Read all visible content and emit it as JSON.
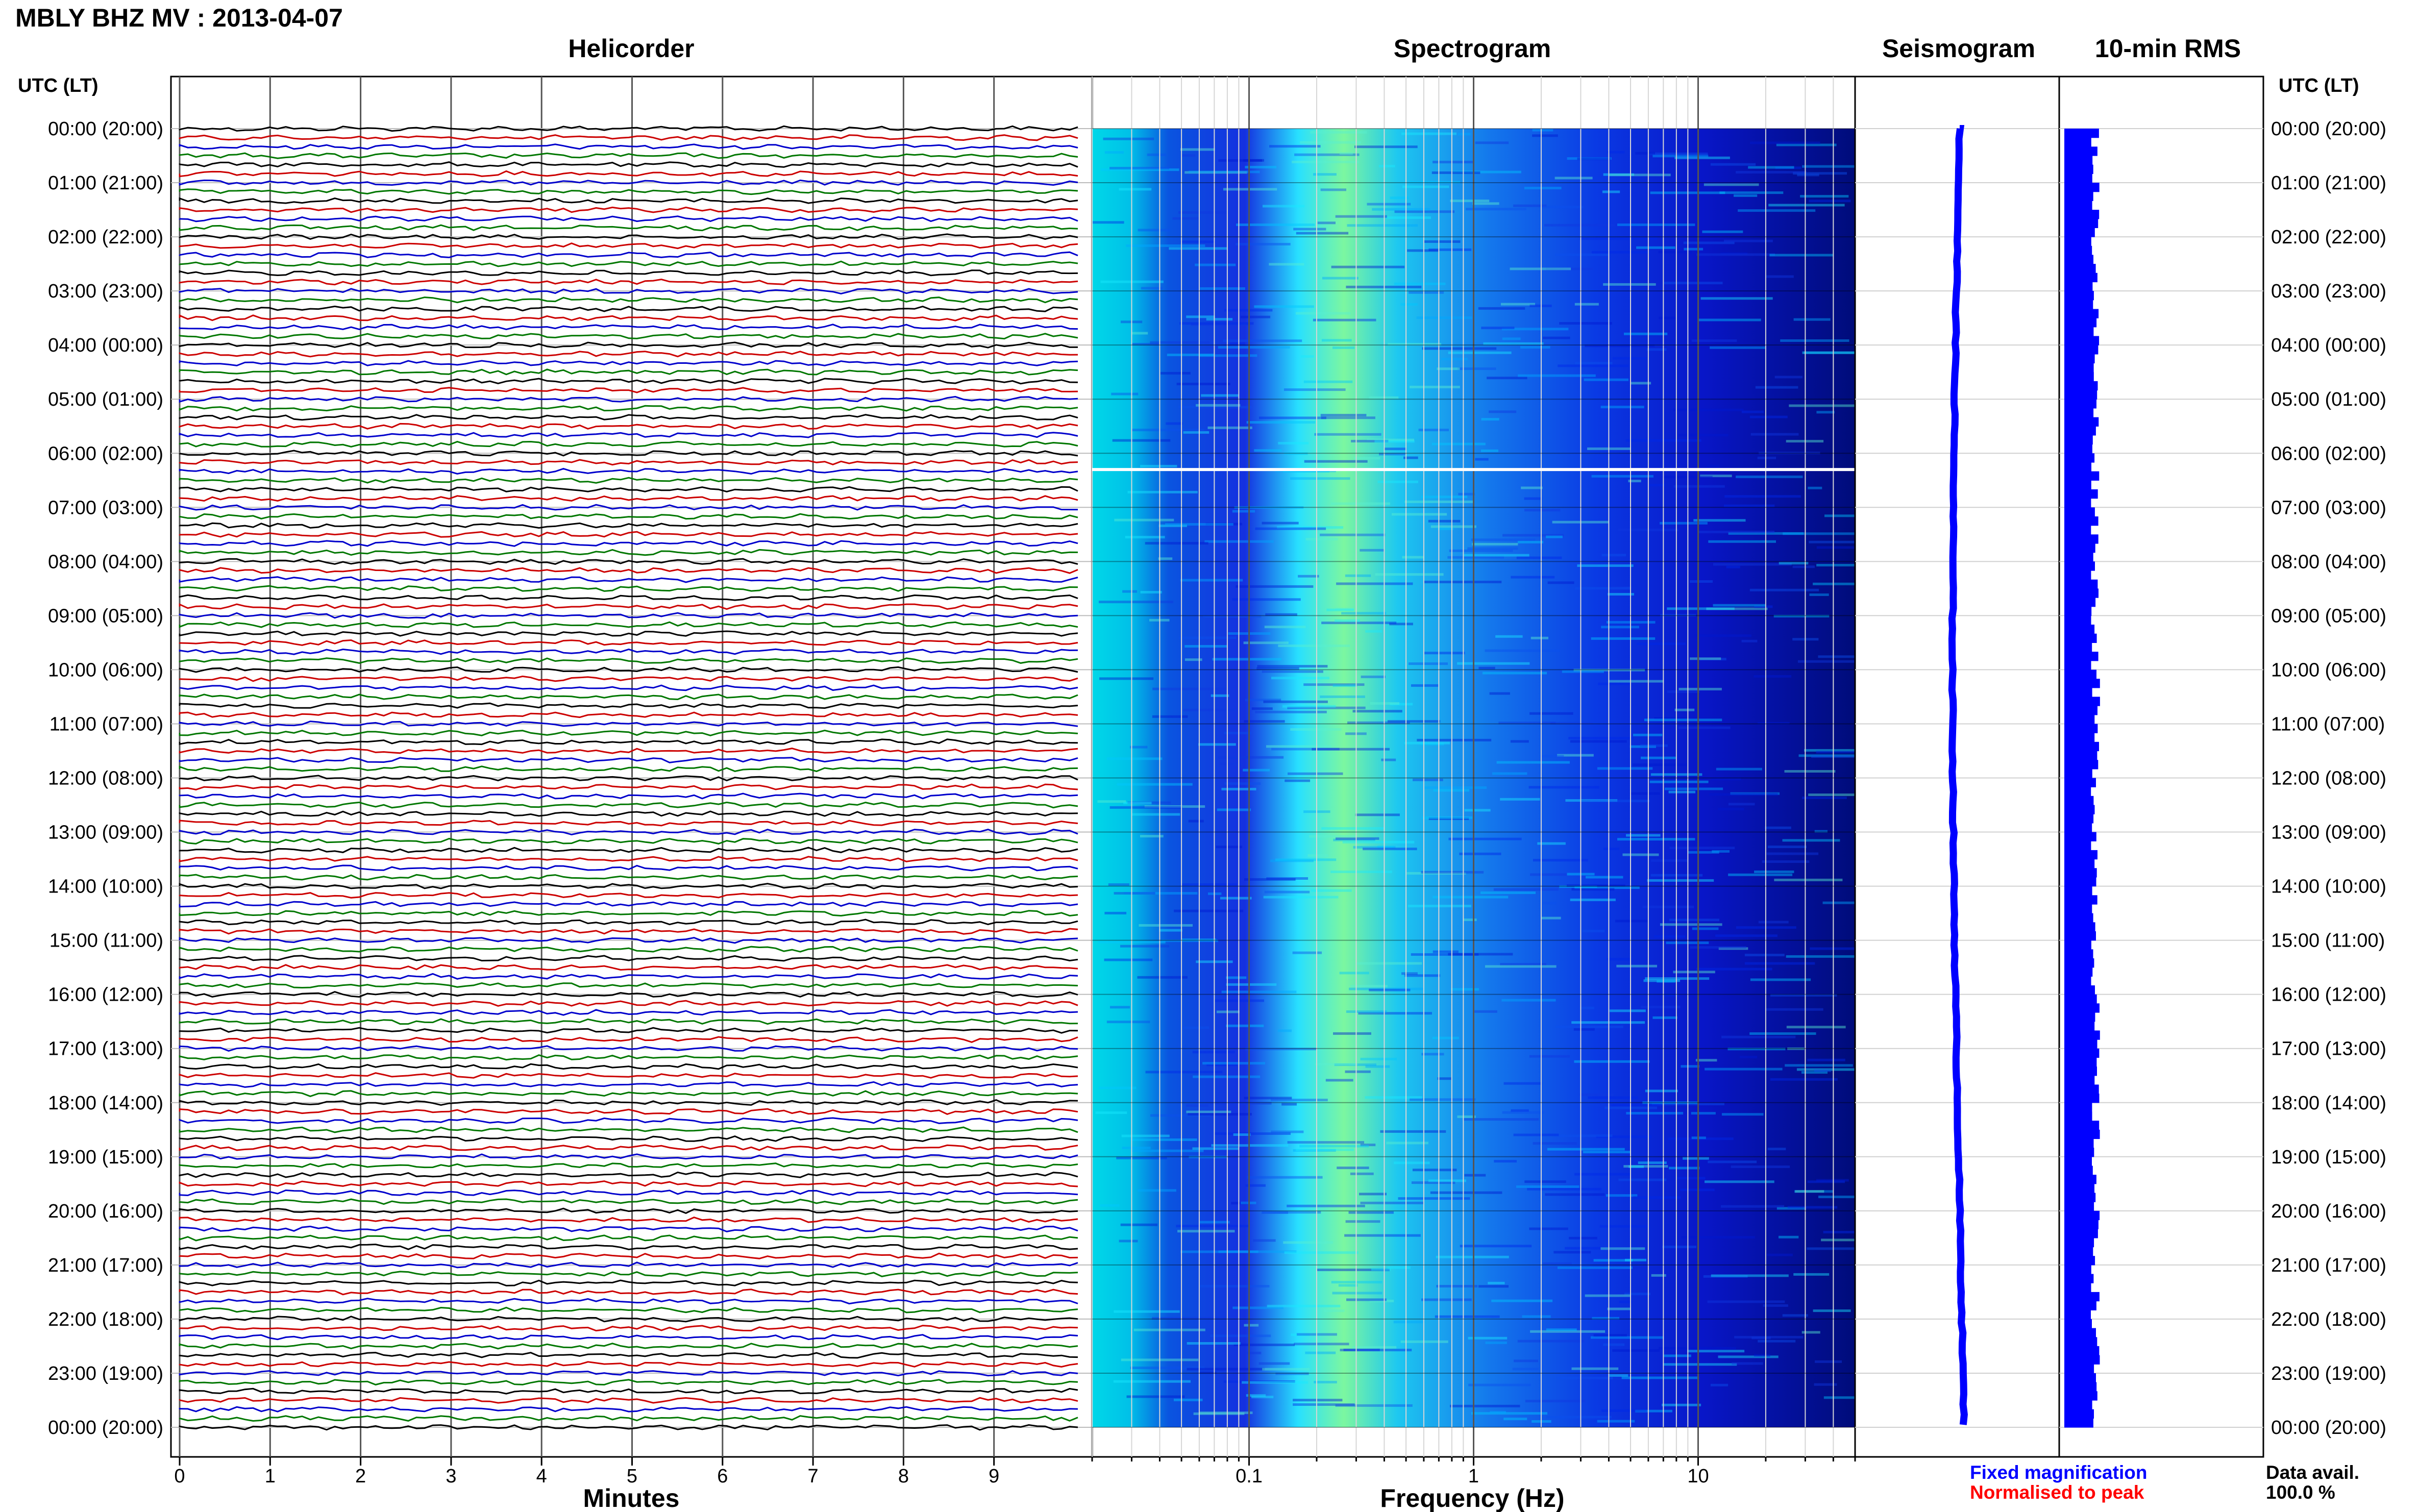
{
  "title": "MBLY BHZ MV : 2013-04-07",
  "hours_utc_lt": [
    "00:00 (20:00)",
    "01:00 (21:00)",
    "02:00 (22:00)",
    "03:00 (23:00)",
    "04:00 (00:00)",
    "05:00 (01:00)",
    "06:00 (02:00)",
    "07:00 (03:00)",
    "08:00 (04:00)",
    "09:00 (05:00)",
    "10:00 (06:00)",
    "11:00 (07:00)",
    "12:00 (08:00)",
    "13:00 (09:00)",
    "14:00 (10:00)",
    "15:00 (11:00)",
    "16:00 (12:00)",
    "17:00 (13:00)",
    "18:00 (14:00)",
    "19:00 (15:00)",
    "20:00 (16:00)",
    "21:00 (17:00)",
    "22:00 (18:00)",
    "23:00 (19:00)",
    "00:00 (20:00)"
  ],
  "chart_data": [
    {
      "type": "line",
      "title": "Helicorder",
      "xlabel": "Minutes",
      "ylabel": "UTC (LT)",
      "x_ticks": [
        "0",
        "1",
        "2",
        "3",
        "4",
        "5",
        "6",
        "7",
        "8",
        "9"
      ],
      "xlim": [
        0,
        10
      ],
      "ylim_hours": [
        0,
        24
      ],
      "traces_per_hour": 6,
      "trace_colors": [
        "#000000",
        "#cc0000",
        "#0000cc",
        "#007700"
      ],
      "grid": true
    },
    {
      "type": "heatmap",
      "title": "Spectrogram",
      "xlabel": "Frequency (Hz)",
      "x_scale": "log",
      "x_ticks": [
        "0.1",
        "1",
        "10"
      ],
      "xlim": [
        0.02,
        50
      ],
      "colormap": [
        "#00008b",
        "#0000ff",
        "#00bfff",
        "#00ffff",
        "#7fff7f",
        "#ffff00"
      ],
      "data_gap_hour": 6.3
    },
    {
      "type": "line",
      "title": "Seismogram",
      "note": "hourly amplitude trace, roughly constant",
      "color": "#0000ff"
    },
    {
      "type": "bar",
      "title": "10-min RMS",
      "color": "#0000ff",
      "orientation": "horizontal"
    }
  ],
  "legend": {
    "fixed": "Fixed magnification",
    "fixed_color": "#0000ff",
    "normalised": "Normalised to peak",
    "normalised_color": "#ff0000"
  },
  "data_avail_label": "Data avail.",
  "data_avail_value": "100.0 %"
}
